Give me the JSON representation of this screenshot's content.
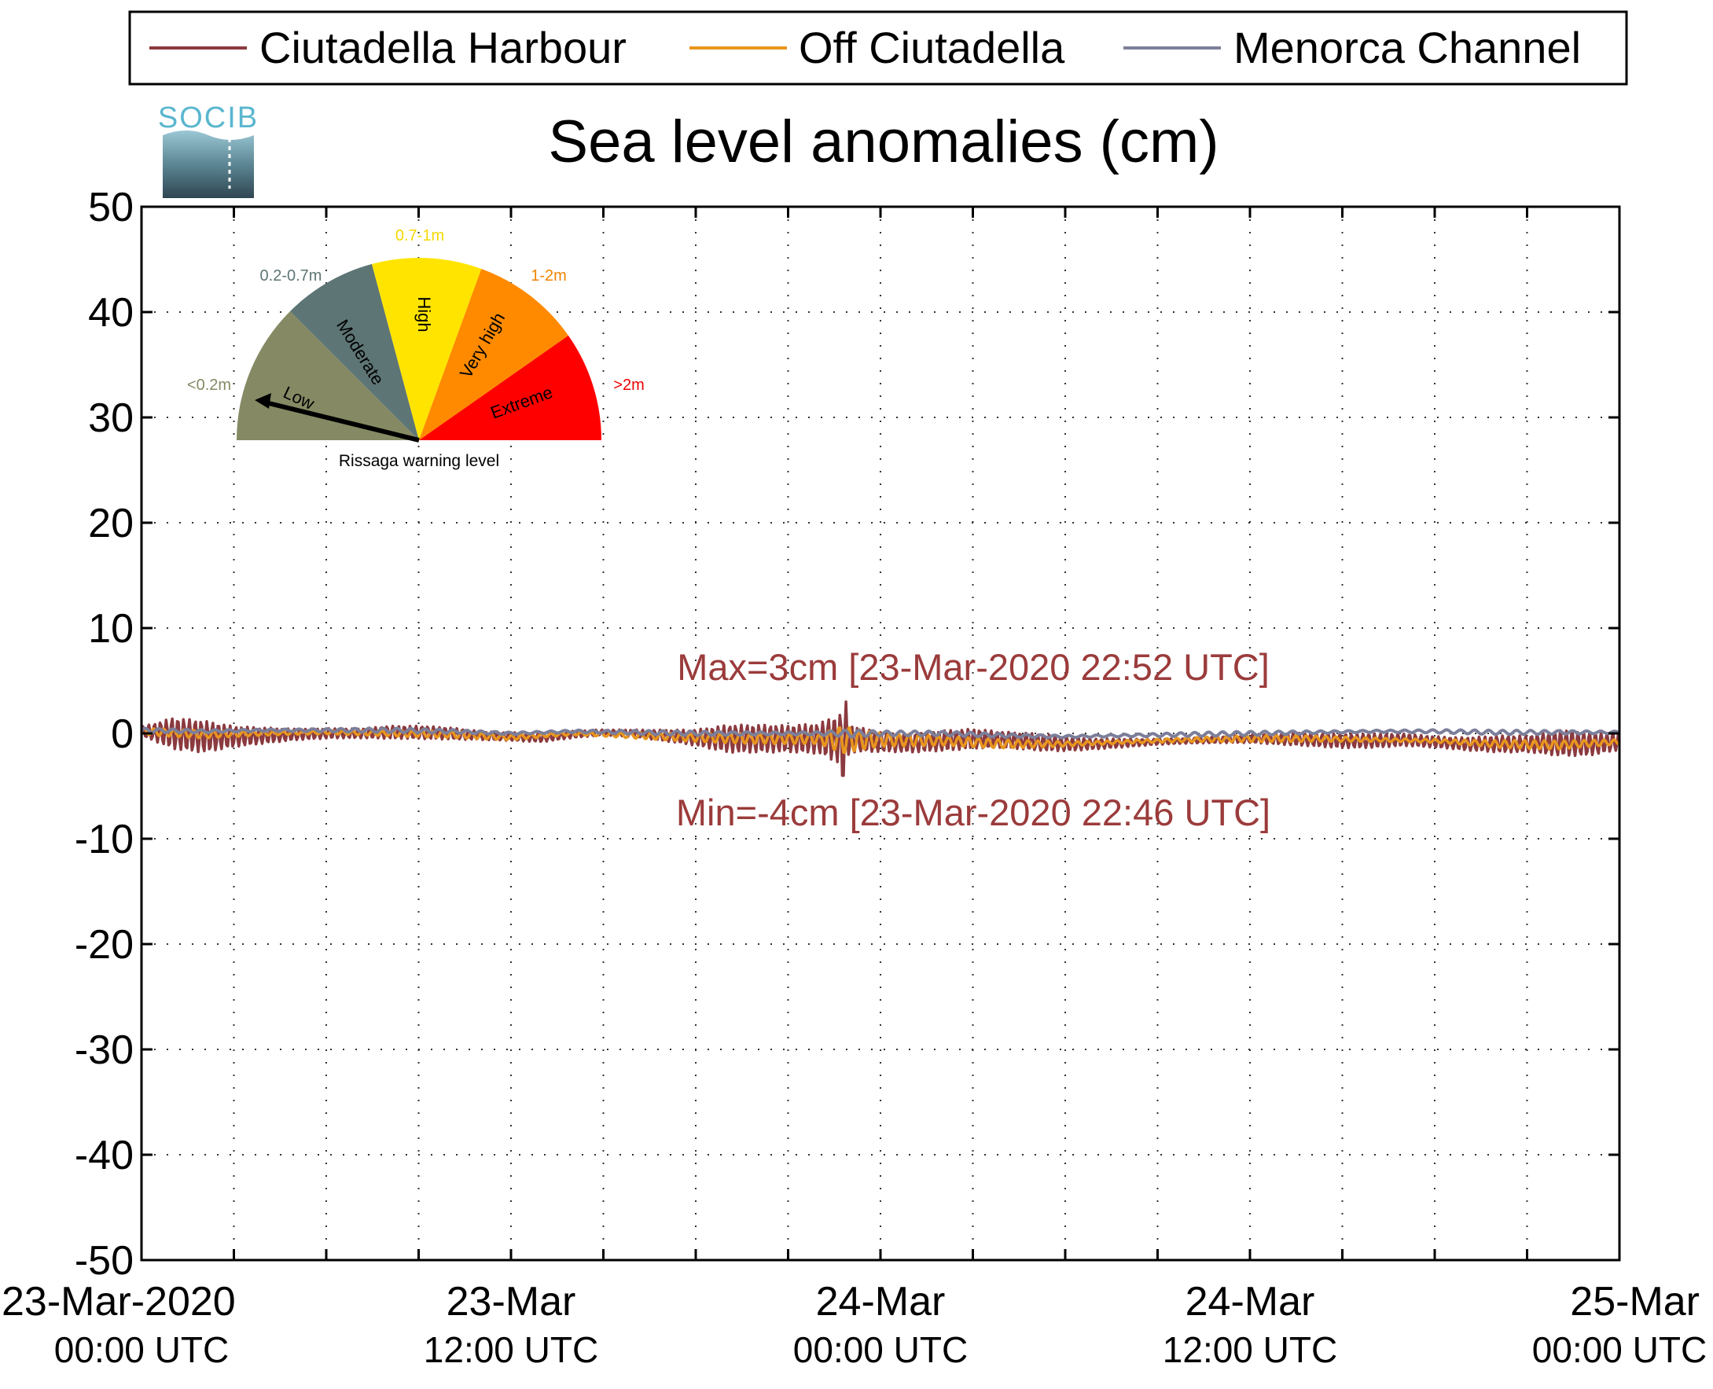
{
  "legend": {
    "items": [
      {
        "label": "Ciutadella Harbour",
        "color": "#8b3a3f"
      },
      {
        "label": "Off Ciutadella",
        "color": "#e8961e"
      },
      {
        "label": "Menorca Channel",
        "color": "#7c7f9a"
      }
    ]
  },
  "logo": {
    "text": "SOCIB"
  },
  "gauge": {
    "caption": "Rissaga warning level",
    "current_level": "Low",
    "segments": [
      {
        "name": "Low",
        "range": "<0.2m",
        "color": "#858a64",
        "range_color": "#858a64"
      },
      {
        "name": "Moderate",
        "range": "0.2-0.7m",
        "color": "#5e7575",
        "range_color": "#5e7575"
      },
      {
        "name": "High",
        "range": "0.7-1m",
        "color": "#ffe400",
        "range_color": "#f5d800"
      },
      {
        "name": "Very high",
        "range": "1-2m",
        "color": "#ff8a00",
        "range_color": "#f08400"
      },
      {
        "name": "Extreme",
        "range": ">2m",
        "color": "#ff0000",
        "range_color": "#ee0000"
      }
    ]
  },
  "chart_data": {
    "type": "line",
    "title": "Sea level anomalies (cm)",
    "ylabel": "",
    "xlabel": "",
    "ylim": [
      -50,
      50
    ],
    "yticks": [
      "50",
      "40",
      "30",
      "20",
      "10",
      "0",
      "-10",
      "-20",
      "-30",
      "-40",
      "-50"
    ],
    "xlim": [
      "2020-03-23T00:00",
      "2020-03-25T00:00"
    ],
    "xticks": [
      {
        "date": "23-Mar-2020",
        "time": "00:00 UTC"
      },
      {
        "date": "23-Mar",
        "time": "12:00 UTC"
      },
      {
        "date": "24-Mar",
        "time": "00:00 UTC"
      },
      {
        "date": "24-Mar",
        "time": "12:00 UTC"
      },
      {
        "date": "25-Mar",
        "time": "00:00 UTC"
      }
    ],
    "grid": true,
    "legend_position": "top",
    "annotations": {
      "max": "Max=3cm [23-Mar-2020 22:52 UTC]",
      "min": "Min=-4cm [23-Mar-2020 22:46 UTC]",
      "color": "#9b3b3b"
    },
    "series": [
      {
        "name": "Ciutadella Harbour",
        "color": "#8b3a3f",
        "x_hours": [
          0,
          1,
          2,
          3,
          4,
          5,
          6,
          7,
          8,
          9,
          10,
          11,
          12,
          13,
          14,
          15,
          16,
          17,
          18,
          19,
          20,
          21,
          22,
          22.77,
          22.87,
          23,
          24,
          25,
          26,
          27,
          28,
          29,
          30,
          31,
          32,
          33,
          34,
          35,
          36,
          37,
          38,
          39,
          40,
          41,
          42,
          43,
          44,
          45,
          46,
          47,
          48
        ],
        "envelope_cm": [
          0.6,
          1.6,
          1.5,
          1.0,
          0.9,
          0.8,
          0.9,
          0.9,
          1.0,
          0.8,
          0.6,
          0.4,
          0.4,
          0.5,
          0.5,
          0.5,
          0.7,
          0.9,
          1.0,
          1.4,
          1.3,
          1.3,
          1.7,
          3.5,
          3.5,
          2.0,
          1.8,
          1.8,
          1.6,
          1.2,
          0.8,
          0.8,
          0.7,
          0.6,
          0.6,
          0.5,
          0.5,
          0.5,
          0.5,
          0.6,
          0.6,
          0.7,
          0.8,
          0.9,
          1.0,
          1.2,
          1.3,
          1.0,
          1.3,
          1.1,
          0.8
        ],
        "mean_cm": [
          0.2,
          0.0,
          -0.3,
          -0.3,
          -0.2,
          -0.1,
          0.0,
          0.0,
          0.1,
          0.1,
          0.0,
          -0.2,
          -0.3,
          -0.4,
          -0.1,
          0.1,
          0.0,
          -0.2,
          -0.4,
          -0.5,
          -0.5,
          -0.5,
          -0.5,
          -0.5,
          -0.5,
          -0.5,
          -0.8,
          -0.9,
          -0.7,
          -0.5,
          -0.6,
          -0.8,
          -1.0,
          -1.0,
          -0.9,
          -0.8,
          -0.7,
          -0.6,
          -0.5,
          -0.5,
          -0.6,
          -0.7,
          -0.7,
          -0.6,
          -0.8,
          -1.0,
          -1.0,
          -1.0,
          -0.9,
          -1.0,
          -0.8
        ],
        "max": {
          "value_cm": 3,
          "time": "23-Mar-2020 22:52 UTC"
        },
        "min": {
          "value_cm": -4,
          "time": "23-Mar-2020 22:46 UTC"
        }
      },
      {
        "name": "Off Ciutadella",
        "color": "#e8961e",
        "x_hours": [
          0,
          2,
          4,
          6,
          8,
          10,
          12,
          14,
          16,
          18,
          20,
          22,
          22.8,
          24,
          26,
          28,
          30,
          32,
          34,
          36,
          38,
          40,
          42,
          44,
          46,
          48
        ],
        "envelope_cm": [
          0.3,
          0.4,
          0.3,
          0.3,
          0.3,
          0.3,
          0.3,
          0.3,
          0.4,
          0.4,
          0.5,
          0.8,
          2.6,
          1.2,
          0.5,
          0.4,
          0.3,
          0.3,
          0.3,
          0.3,
          0.3,
          0.3,
          0.3,
          0.4,
          0.4,
          0.3
        ],
        "mean_cm": [
          0.2,
          -0.1,
          0.0,
          0.1,
          0.0,
          -0.1,
          -0.4,
          0.0,
          -0.2,
          -0.4,
          -0.5,
          -0.5,
          -0.6,
          -0.6,
          -0.7,
          -1.0,
          -1.0,
          -0.8,
          -0.6,
          -0.5,
          -0.5,
          -0.6,
          -0.7,
          -1.0,
          -1.1,
          -0.8
        ]
      },
      {
        "name": "Menorca Channel",
        "color": "#7c7f9a",
        "x_hours": [
          0,
          2,
          4,
          6,
          8,
          10,
          12,
          14,
          16,
          18,
          20,
          22,
          23,
          24,
          26,
          28,
          30,
          32,
          34,
          36,
          38,
          40,
          42,
          44,
          46,
          48
        ],
        "envelope_cm": [
          0.2,
          0.2,
          0.2,
          0.2,
          0.2,
          0.2,
          0.2,
          0.2,
          0.2,
          0.2,
          0.2,
          0.3,
          0.6,
          0.3,
          0.2,
          0.2,
          0.2,
          0.2,
          0.2,
          0.2,
          0.2,
          0.2,
          0.2,
          0.2,
          0.2,
          0.2
        ],
        "mean_cm": [
          0.3,
          0.2,
          0.3,
          0.3,
          0.3,
          0.2,
          0.0,
          0.2,
          0.1,
          0.0,
          0.0,
          0.0,
          0.0,
          0.0,
          0.0,
          -0.2,
          -0.3,
          -0.2,
          -0.1,
          0.0,
          0.1,
          0.2,
          0.2,
          0.1,
          0.1,
          0.1
        ]
      }
    ]
  }
}
